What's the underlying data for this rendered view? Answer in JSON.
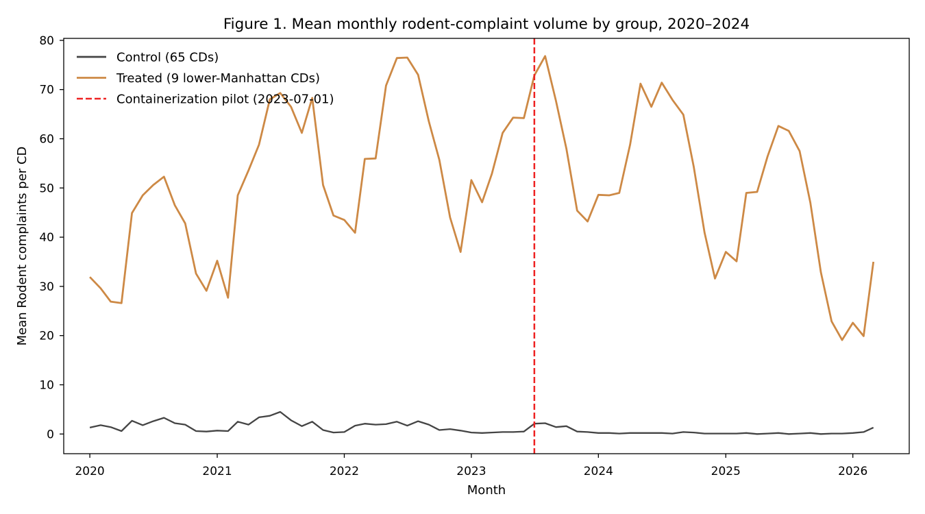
{
  "chart_data": {
    "type": "line",
    "title": "Figure 1. Mean monthly rodent-complaint volume by group, 2020–2024",
    "xlabel": "Month",
    "ylabel": "Mean Rodent complaints per CD",
    "xlim": [
      "2019-10-18",
      "2026-06-12"
    ],
    "ylim": [
      -4,
      80.4
    ],
    "x_ticks": [
      {
        "date": "2020-01-01",
        "label": "2020"
      },
      {
        "date": "2021-01-01",
        "label": "2021"
      },
      {
        "date": "2022-01-01",
        "label": "2022"
      },
      {
        "date": "2023-01-01",
        "label": "2023"
      },
      {
        "date": "2024-01-01",
        "label": "2024"
      },
      {
        "date": "2025-01-01",
        "label": "2025"
      },
      {
        "date": "2026-01-01",
        "label": "2026"
      }
    ],
    "y_ticks": [
      0,
      10,
      20,
      30,
      40,
      50,
      60,
      70,
      80
    ],
    "grid": false,
    "legend_position": "top-left",
    "x": [
      "2020-01",
      "2020-02",
      "2020-03",
      "2020-04",
      "2020-05",
      "2020-06",
      "2020-07",
      "2020-08",
      "2020-09",
      "2020-10",
      "2020-11",
      "2020-12",
      "2021-01",
      "2021-02",
      "2021-03",
      "2021-04",
      "2021-05",
      "2021-06",
      "2021-07",
      "2021-08",
      "2021-09",
      "2021-10",
      "2021-11",
      "2021-12",
      "2022-01",
      "2022-02",
      "2022-03",
      "2022-04",
      "2022-05",
      "2022-06",
      "2022-07",
      "2022-08",
      "2022-09",
      "2022-10",
      "2022-11",
      "2022-12",
      "2023-01",
      "2023-02",
      "2023-03",
      "2023-04",
      "2023-05",
      "2023-06",
      "2023-07",
      "2023-08",
      "2023-09",
      "2023-10",
      "2023-11",
      "2023-12",
      "2024-01",
      "2024-02",
      "2024-03",
      "2024-04",
      "2024-05",
      "2024-06",
      "2024-07",
      "2024-08",
      "2024-09",
      "2024-10",
      "2024-11",
      "2024-12",
      "2025-01",
      "2025-02",
      "2025-03",
      "2025-04",
      "2025-05",
      "2025-06",
      "2025-07",
      "2025-08",
      "2025-09",
      "2025-10",
      "2025-11",
      "2025-12",
      "2026-01",
      "2026-02",
      "2026-03"
    ],
    "series": [
      {
        "name": "Control (65 CDs)",
        "color": "#444444",
        "values": [
          1.3,
          1.8,
          1.4,
          0.6,
          2.7,
          1.8,
          2.6,
          3.3,
          2.2,
          1.9,
          0.6,
          0.5,
          0.7,
          0.6,
          2.5,
          1.9,
          3.4,
          3.7,
          4.5,
          2.8,
          1.6,
          2.5,
          0.8,
          0.3,
          0.4,
          1.7,
          2.1,
          1.9,
          2.0,
          2.5,
          1.7,
          2.6,
          1.9,
          0.8,
          1.0,
          0.7,
          0.3,
          0.2,
          0.3,
          0.4,
          0.4,
          0.5,
          2.1,
          2.2,
          1.4,
          1.6,
          0.5,
          0.4,
          0.2,
          0.2,
          0.1,
          0.2,
          0.2,
          0.2,
          0.2,
          0.1,
          0.4,
          0.3,
          0.1,
          0.1,
          0.1,
          0.1,
          0.2,
          0.0,
          0.1,
          0.2,
          0.0,
          0.1,
          0.2,
          0.0,
          0.1,
          0.1,
          0.2,
          0.4,
          1.3
        ]
      },
      {
        "name": "Treated (9 lower-Manhattan CDs)",
        "color": "#cd8945",
        "values": [
          31.9,
          29.6,
          26.9,
          26.6,
          44.9,
          48.5,
          50.6,
          52.3,
          46.5,
          42.8,
          32.6,
          29.1,
          35.2,
          27.7,
          48.5,
          53.6,
          58.8,
          68.0,
          69.3,
          66.5,
          61.2,
          68.3,
          50.6,
          44.4,
          43.5,
          40.9,
          55.9,
          56.0,
          70.8,
          76.4,
          76.5,
          73.0,
          63.5,
          55.7,
          44.0,
          37.0,
          51.6,
          47.1,
          52.9,
          61.2,
          64.3,
          64.2,
          72.9,
          76.8,
          67.7,
          58.0,
          45.4,
          43.2,
          48.6,
          48.5,
          49.0,
          58.8,
          71.2,
          66.5,
          71.4,
          67.9,
          64.9,
          54.3,
          40.9,
          31.6,
          37.0,
          35.1,
          49.0,
          49.2,
          56.4,
          62.6,
          61.6,
          57.5,
          47.0,
          32.9,
          22.9,
          19.1,
          22.6,
          19.9,
          35.0
        ]
      }
    ],
    "annotations": [
      {
        "type": "vline",
        "date": "2023-07-01",
        "label": "Containerization pilot (2023-07-01)",
        "color": "#ee2222",
        "style": "dashed"
      }
    ],
    "legend": [
      {
        "label": "Control (65 CDs)",
        "color": "#444444",
        "style": "solid"
      },
      {
        "label": "Treated (9 lower-Manhattan CDs)",
        "color": "#cd8945",
        "style": "solid"
      },
      {
        "label": "Containerization pilot (2023-07-01)",
        "color": "#ee2222",
        "style": "dashed"
      }
    ]
  }
}
